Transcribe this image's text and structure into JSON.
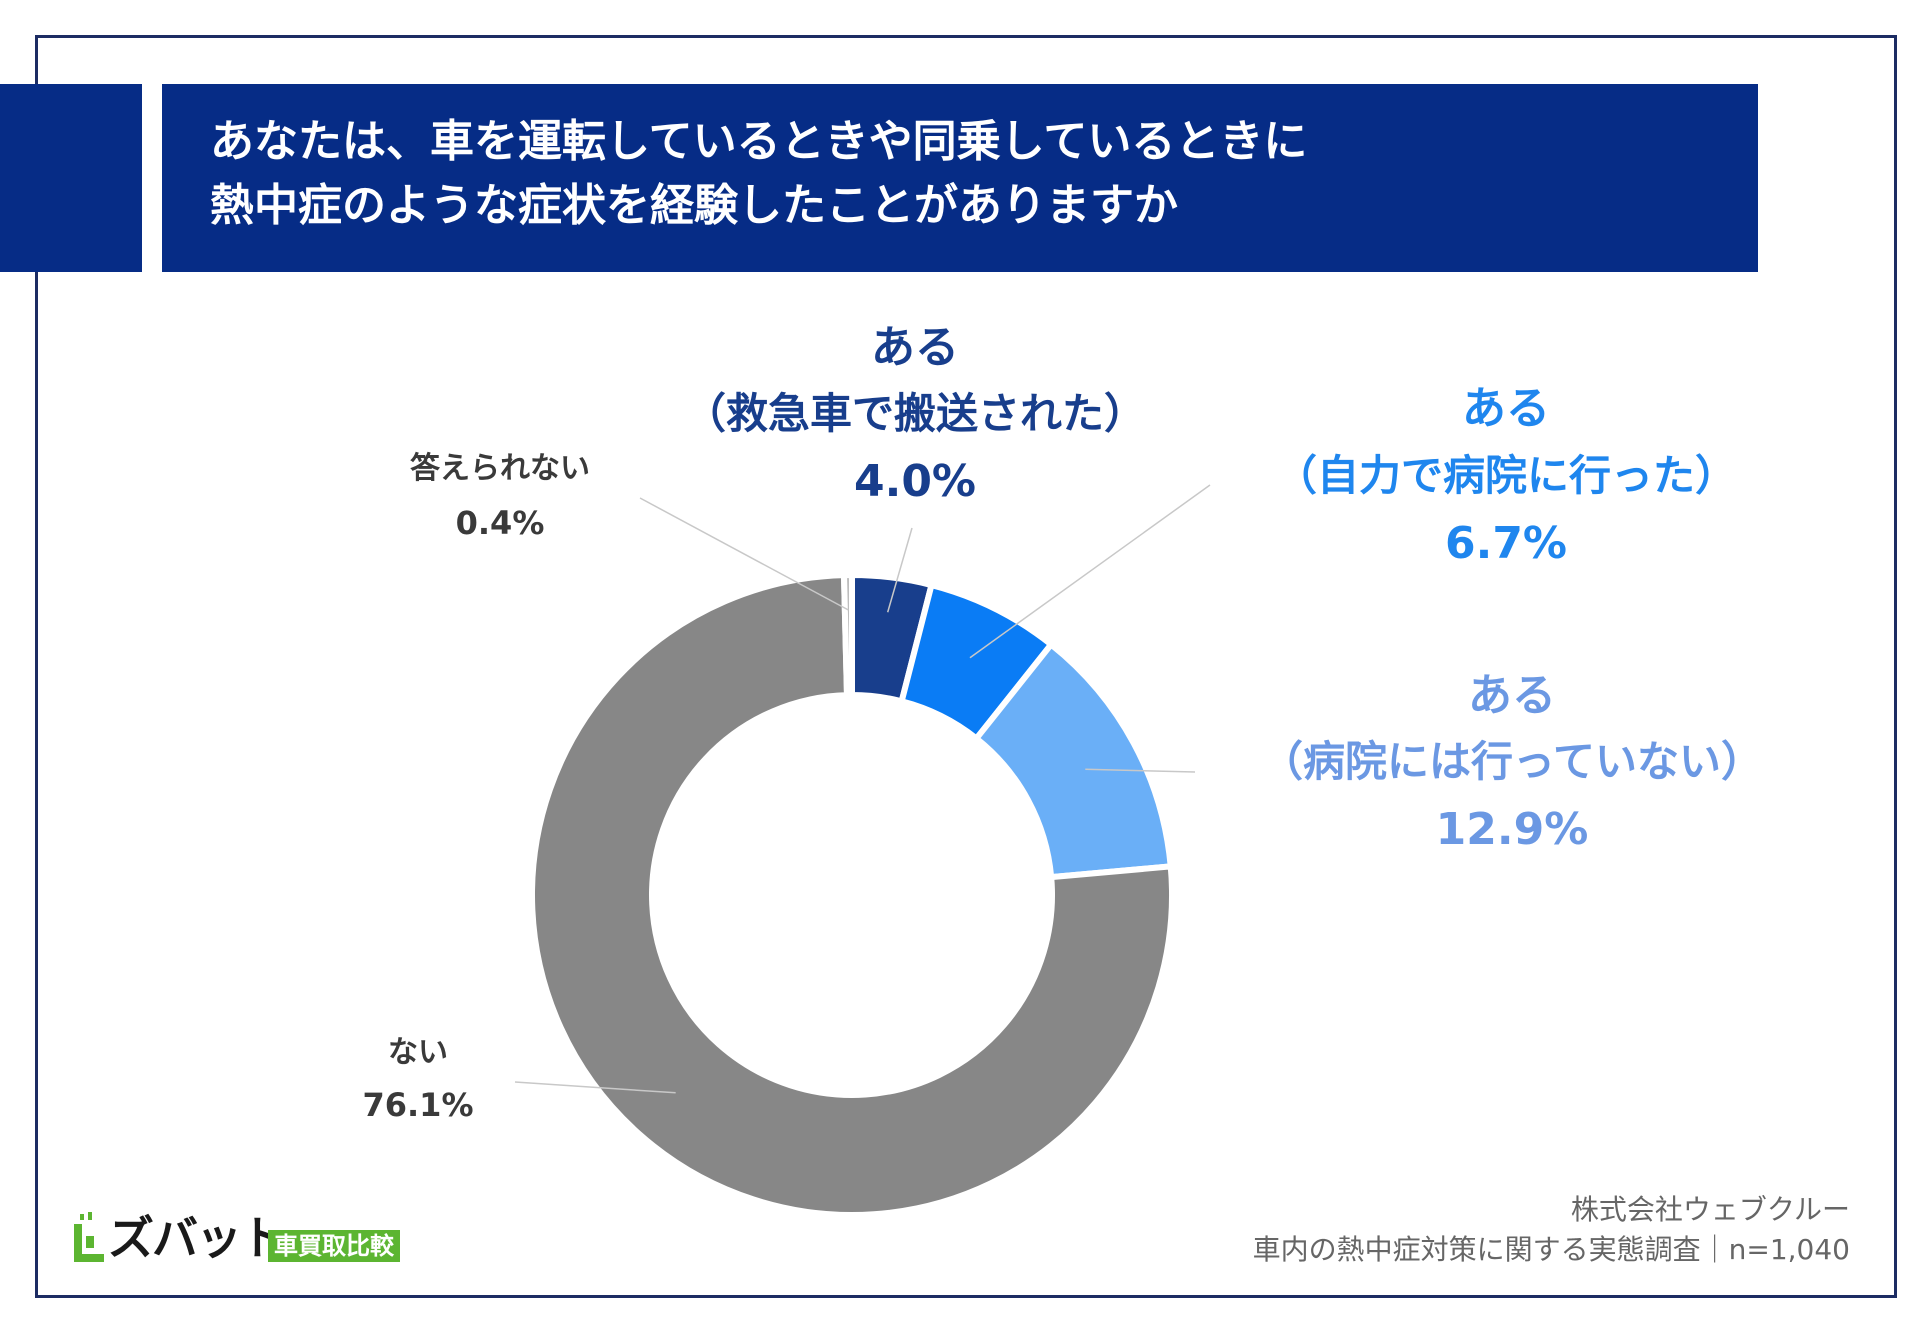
{
  "header": {
    "title_line1": "あなたは、車を運転しているときや同乗しているときに",
    "title_line2": "熱中症のような症状を経験したことがありますか"
  },
  "chart_data": {
    "type": "pie",
    "variant": "donut",
    "title": "あなたは、車を運転しているときや同乗しているときに 熱中症のような症状を経験したことがありますか",
    "slices": [
      {
        "label_line1": "ある",
        "label_line2": "（救急車で搬送された）",
        "value": 4.0,
        "value_label": "4.0%",
        "color": "#183e8c"
      },
      {
        "label_line1": "ある",
        "label_line2": "（自力で病院に行った）",
        "value": 6.7,
        "value_label": "6.7%",
        "color": "#0a7cf5"
      },
      {
        "label_line1": "ある",
        "label_line2": "（病院には行っていない）",
        "value": 12.9,
        "value_label": "12.9%",
        "color": "#6aaff7"
      },
      {
        "label_line1": "ない",
        "label_line2": "",
        "value": 76.1,
        "value_label": "76.1%",
        "color": "#878787"
      },
      {
        "label_line1": "答えられない",
        "label_line2": "",
        "value": 0.4,
        "value_label": "0.4%",
        "color": "#bdbdbd"
      }
    ],
    "label_colors": [
      "#183e8c",
      "#1f86ee",
      "#6b98e3",
      "#3a3a3a",
      "#3a3a3a"
    ],
    "start": "12 o'clock",
    "direction": "clockwise"
  },
  "logo": {
    "name": "ズバット",
    "badge": "車買取比較",
    "icon": "zubat-logo-icon",
    "brand_color": "#5cb531"
  },
  "source": {
    "company": "株式会社ウェブクルー",
    "survey": "車内の熱中症対策に関する実態調査｜n=1,040"
  }
}
